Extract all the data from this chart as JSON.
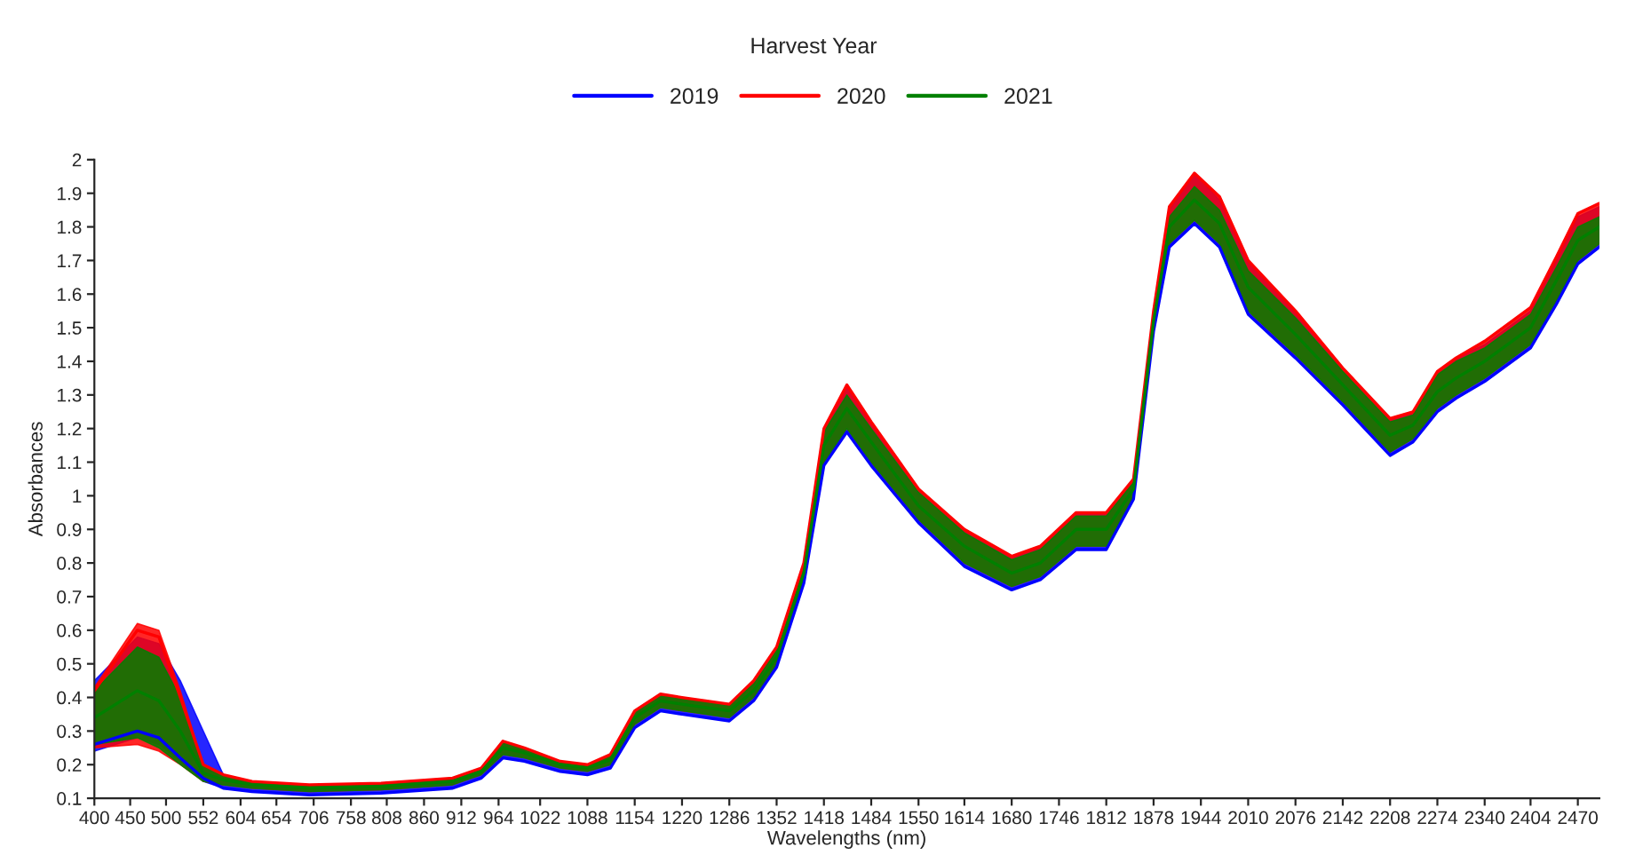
{
  "chart_data": {
    "type": "line",
    "legend_title": "Harvest Year",
    "xlabel": "Wavelengths (nm)",
    "ylabel": "Absorbances",
    "x": [
      400,
      460,
      490,
      520,
      552,
      580,
      620,
      700,
      800,
      900,
      940,
      970,
      1000,
      1050,
      1088,
      1120,
      1154,
      1190,
      1220,
      1286,
      1320,
      1352,
      1390,
      1418,
      1450,
      1484,
      1550,
      1614,
      1680,
      1720,
      1770,
      1812,
      1850,
      1878,
      1900,
      1935,
      1970,
      2010,
      2076,
      2142,
      2208,
      2240,
      2274,
      2300,
      2340,
      2404,
      2440,
      2470,
      2500
    ],
    "series": [
      {
        "name": "2019",
        "color": "#0000ff",
        "values": [
          0.26,
          0.3,
          0.28,
          0.22,
          0.16,
          0.13,
          0.12,
          0.11,
          0.115,
          0.13,
          0.16,
          0.22,
          0.21,
          0.18,
          0.17,
          0.19,
          0.31,
          0.36,
          0.35,
          0.33,
          0.39,
          0.49,
          0.74,
          1.09,
          1.19,
          1.09,
          0.92,
          0.79,
          0.72,
          0.75,
          0.84,
          0.84,
          0.99,
          1.49,
          1.74,
          1.81,
          1.74,
          1.54,
          1.41,
          1.27,
          1.12,
          1.16,
          1.25,
          1.29,
          1.34,
          1.44,
          1.57,
          1.69,
          1.74
        ],
        "lower": [
          0.24,
          0.28,
          0.26,
          0.21,
          0.15,
          0.13,
          0.12,
          0.11,
          0.115,
          0.13,
          0.16,
          0.22,
          0.21,
          0.18,
          0.17,
          0.19,
          0.31,
          0.36,
          0.35,
          0.33,
          0.39,
          0.49,
          0.74,
          1.09,
          1.19,
          1.09,
          0.92,
          0.79,
          0.72,
          0.75,
          0.84,
          0.84,
          0.99,
          1.49,
          1.74,
          1.81,
          1.74,
          1.54,
          1.41,
          1.27,
          1.12,
          1.16,
          1.25,
          1.29,
          1.34,
          1.44,
          1.57,
          1.69,
          1.74
        ],
        "upper": [
          0.45,
          0.58,
          0.56,
          0.45,
          0.3,
          0.17,
          0.15,
          0.14,
          0.145,
          0.16,
          0.19,
          0.27,
          0.25,
          0.21,
          0.2,
          0.23,
          0.36,
          0.41,
          0.4,
          0.38,
          0.45,
          0.55,
          0.8,
          1.2,
          1.33,
          1.22,
          1.02,
          0.9,
          0.82,
          0.85,
          0.95,
          0.95,
          1.05,
          1.55,
          1.85,
          1.96,
          1.88,
          1.7,
          1.55,
          1.38,
          1.23,
          1.25,
          1.37,
          1.41,
          1.45,
          1.55,
          1.7,
          1.83,
          1.86
        ]
      },
      {
        "name": "2020",
        "color": "#ff0000",
        "values": [
          0.42,
          0.6,
          0.58,
          0.4,
          0.2,
          0.17,
          0.15,
          0.14,
          0.145,
          0.16,
          0.19,
          0.27,
          0.25,
          0.21,
          0.2,
          0.23,
          0.36,
          0.41,
          0.4,
          0.38,
          0.45,
          0.55,
          0.8,
          1.2,
          1.33,
          1.22,
          1.02,
          0.9,
          0.82,
          0.85,
          0.95,
          0.95,
          1.05,
          1.55,
          1.86,
          1.96,
          1.89,
          1.7,
          1.55,
          1.38,
          1.23,
          1.25,
          1.37,
          1.41,
          1.46,
          1.56,
          1.71,
          1.84,
          1.87
        ],
        "lower": [
          0.25,
          0.26,
          0.24,
          0.2,
          0.15,
          0.14,
          0.13,
          0.12,
          0.125,
          0.14,
          0.17,
          0.23,
          0.22,
          0.19,
          0.18,
          0.2,
          0.32,
          0.37,
          0.36,
          0.34,
          0.4,
          0.5,
          0.75,
          1.1,
          1.2,
          1.1,
          0.93,
          0.8,
          0.73,
          0.76,
          0.85,
          0.85,
          1.0,
          1.5,
          1.75,
          1.82,
          1.75,
          1.55,
          1.42,
          1.28,
          1.13,
          1.17,
          1.26,
          1.3,
          1.35,
          1.45,
          1.58,
          1.7,
          1.75
        ],
        "upper": [
          0.43,
          0.62,
          0.6,
          0.42,
          0.2,
          0.17,
          0.15,
          0.14,
          0.145,
          0.16,
          0.19,
          0.27,
          0.25,
          0.21,
          0.2,
          0.23,
          0.36,
          0.41,
          0.4,
          0.38,
          0.45,
          0.55,
          0.8,
          1.2,
          1.33,
          1.22,
          1.02,
          0.9,
          0.82,
          0.85,
          0.95,
          0.95,
          1.05,
          1.55,
          1.86,
          1.96,
          1.89,
          1.7,
          1.55,
          1.38,
          1.23,
          1.25,
          1.37,
          1.41,
          1.46,
          1.56,
          1.71,
          1.84,
          1.87
        ]
      },
      {
        "name": "2021",
        "color": "#008000",
        "values": [
          0.34,
          0.42,
          0.39,
          0.3,
          0.175,
          0.155,
          0.14,
          0.13,
          0.135,
          0.15,
          0.18,
          0.25,
          0.235,
          0.2,
          0.19,
          0.215,
          0.34,
          0.39,
          0.38,
          0.36,
          0.42,
          0.52,
          0.77,
          1.15,
          1.26,
          1.16,
          0.97,
          0.85,
          0.77,
          0.8,
          0.9,
          0.9,
          1.02,
          1.52,
          1.8,
          1.88,
          1.81,
          1.62,
          1.48,
          1.33,
          1.18,
          1.21,
          1.31,
          1.35,
          1.4,
          1.5,
          1.64,
          1.76,
          1.8
        ],
        "lower": [
          0.26,
          0.28,
          0.25,
          0.2,
          0.15,
          0.14,
          0.13,
          0.12,
          0.125,
          0.14,
          0.17,
          0.23,
          0.22,
          0.19,
          0.18,
          0.2,
          0.32,
          0.37,
          0.36,
          0.34,
          0.4,
          0.5,
          0.75,
          1.1,
          1.2,
          1.1,
          0.93,
          0.8,
          0.73,
          0.76,
          0.85,
          0.85,
          1.0,
          1.5,
          1.75,
          1.82,
          1.75,
          1.55,
          1.42,
          1.28,
          1.13,
          1.17,
          1.26,
          1.3,
          1.35,
          1.45,
          1.58,
          1.7,
          1.75
        ],
        "upper": [
          0.42,
          0.55,
          0.52,
          0.4,
          0.2,
          0.17,
          0.15,
          0.14,
          0.145,
          0.16,
          0.19,
          0.27,
          0.25,
          0.21,
          0.2,
          0.23,
          0.36,
          0.41,
          0.4,
          0.38,
          0.44,
          0.54,
          0.79,
          1.19,
          1.3,
          1.2,
          1.01,
          0.89,
          0.81,
          0.84,
          0.94,
          0.94,
          1.04,
          1.54,
          1.83,
          1.92,
          1.85,
          1.67,
          1.53,
          1.37,
          1.22,
          1.24,
          1.36,
          1.4,
          1.44,
          1.54,
          1.68,
          1.8,
          1.83
        ]
      }
    ],
    "xlim": [
      400,
      2500
    ],
    "xticks": [
      400,
      450,
      500,
      552,
      604,
      654,
      706,
      758,
      808,
      860,
      912,
      964,
      1022,
      1088,
      1154,
      1220,
      1286,
      1352,
      1418,
      1484,
      1550,
      1614,
      1680,
      1746,
      1812,
      1878,
      1944,
      2010,
      2076,
      2142,
      2208,
      2274,
      2340,
      2404,
      2470
    ],
    "ylim": [
      0.1,
      2
    ],
    "yticks": [
      0.1,
      0.2,
      0.3,
      0.4,
      0.5,
      0.6,
      0.7,
      0.8,
      0.9,
      1,
      1.1,
      1.2,
      1.3,
      1.4,
      1.5,
      1.6,
      1.7,
      1.8,
      1.9,
      2
    ],
    "legend": "top",
    "grid": false,
    "marker": "none",
    "line_style": "solid"
  }
}
